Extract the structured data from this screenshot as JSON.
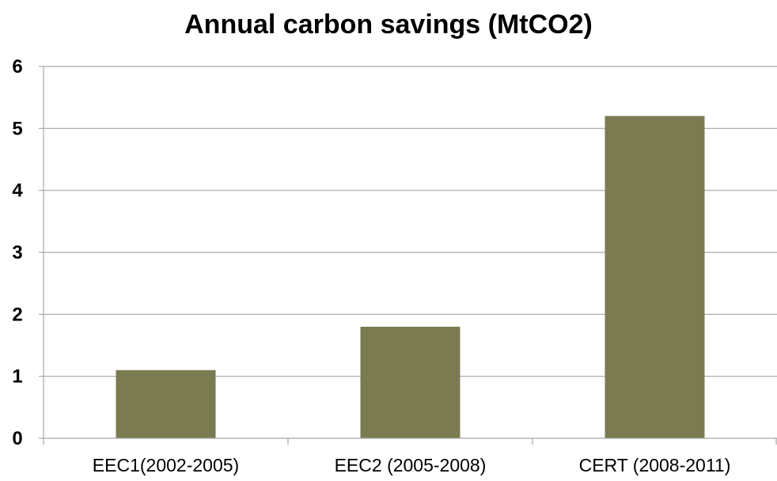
{
  "chart_data": {
    "type": "bar",
    "title": "Annual carbon savings (MtCO2)",
    "xlabel": "",
    "ylabel": "",
    "categories": [
      "EEC1(2002-2005)",
      "EEC2 (2005-2008)",
      "CERT (2008-2011)"
    ],
    "values": [
      1.1,
      1.8,
      5.2
    ],
    "ylim": [
      0,
      6
    ],
    "yticks": [
      0,
      1,
      2,
      3,
      4,
      5,
      6
    ],
    "grid": true,
    "legend": "none",
    "colors": {
      "bar": "#7b7b51",
      "grid": "#a6a6a6",
      "axis": "#a6a6a6"
    }
  }
}
